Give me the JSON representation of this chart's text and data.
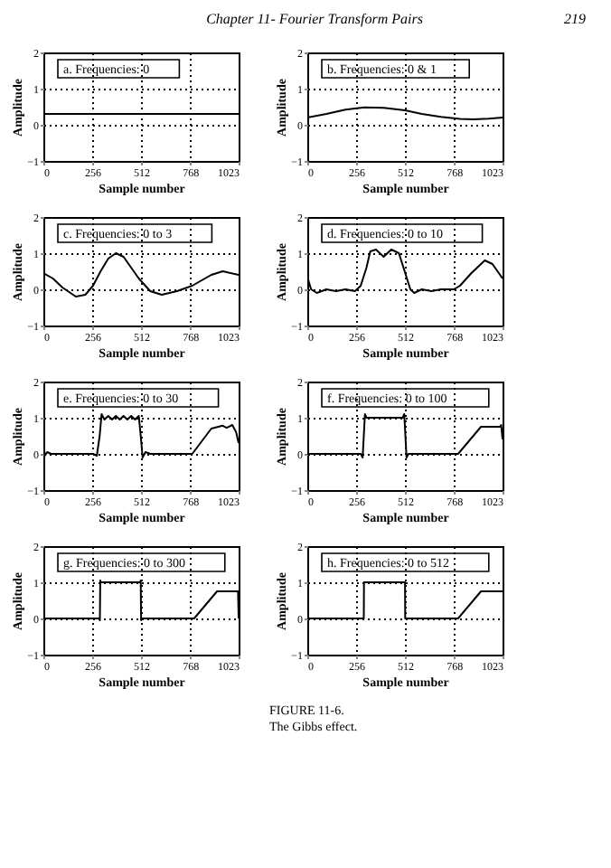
{
  "chart_data": [
    {
      "type": "line",
      "title": "a. Frequencies: 0",
      "xlabel": "Sample number",
      "ylabel": "Amplitude",
      "annotations": [
        "Chapter 11- Fourier Transform Pairs",
        "219"
      ],
      "xlim": [
        0,
        1023
      ],
      "xticks": [
        0,
        256,
        512,
        768,
        1023
      ],
      "ylim": [
        -1,
        2
      ],
      "yticks": [
        -1,
        0,
        1,
        2
      ],
      "grid": true,
      "series": [
        {
          "color": "#000000",
          "x": [
            0,
            1023
          ],
          "values": [
            0.3,
            0.3
          ]
        }
      ]
    },
    {
      "type": "line",
      "title": "b. Frequencies: 0 & 1",
      "xlabel": "Sample number",
      "ylabel": "Amplitude",
      "xlim": [
        0,
        1023
      ],
      "xticks": [
        0,
        256,
        512,
        768,
        1023
      ],
      "ylim": [
        -1,
        2
      ],
      "yticks": [
        -1,
        0,
        1,
        2
      ],
      "grid": true,
      "series": [
        {
          "color": "#000000",
          "x": [
            0,
            100,
            200,
            300,
            400,
            512,
            600,
            700,
            800,
            870,
            950,
            1023
          ],
          "values": [
            0.2,
            0.3,
            0.42,
            0.48,
            0.47,
            0.4,
            0.3,
            0.22,
            0.16,
            0.15,
            0.17,
            0.2
          ]
        }
      ]
    },
    {
      "type": "line",
      "title": "c. Frequencies: 0 to 3",
      "xlabel": "Sample number",
      "ylabel": "Amplitude",
      "xlim": [
        0,
        1023
      ],
      "xticks": [
        0,
        256,
        512,
        768,
        1023
      ],
      "ylim": [
        -1,
        2
      ],
      "yticks": [
        -1,
        0,
        1,
        2
      ],
      "grid": true,
      "series": [
        {
          "color": "#000000",
          "x": [
            0,
            50,
            100,
            170,
            220,
            260,
            300,
            340,
            380,
            420,
            460,
            500,
            560,
            620,
            700,
            780,
            880,
            940,
            1023
          ],
          "values": [
            0.45,
            0.3,
            0.05,
            -0.2,
            -0.15,
            0.1,
            0.5,
            0.85,
            1.0,
            0.9,
            0.6,
            0.3,
            -0.05,
            -0.15,
            -0.05,
            0.1,
            0.4,
            0.5,
            0.4
          ]
        }
      ]
    },
    {
      "type": "line",
      "title": "d. Frequencies: 0 to 10",
      "xlabel": "Sample number",
      "ylabel": "Amplitude",
      "xlim": [
        0,
        1023
      ],
      "xticks": [
        0,
        256,
        512,
        768,
        1023
      ],
      "ylim": [
        -1,
        2
      ],
      "yticks": [
        -1,
        0,
        1,
        2
      ],
      "grid": true,
      "series": [
        {
          "color": "#000000",
          "x": [
            0,
            20,
            50,
            100,
            150,
            200,
            250,
            280,
            310,
            330,
            360,
            400,
            440,
            480,
            510,
            540,
            560,
            600,
            650,
            700,
            768,
            800,
            860,
            930,
            970,
            1010,
            1023
          ],
          "values": [
            0.35,
            0.0,
            -0.1,
            0.0,
            -0.05,
            0.0,
            -0.05,
            0.1,
            0.6,
            1.05,
            1.1,
            0.9,
            1.1,
            1.0,
            0.5,
            0.0,
            -0.1,
            0.0,
            -0.05,
            0.0,
            0.0,
            0.1,
            0.45,
            0.8,
            0.7,
            0.4,
            0.3
          ]
        }
      ]
    },
    {
      "type": "line",
      "title": "e. Frequencies: 0 to 30",
      "xlabel": "Sample number",
      "ylabel": "Amplitude",
      "xlim": [
        0,
        1023
      ],
      "xticks": [
        0,
        256,
        512,
        768,
        1023
      ],
      "ylim": [
        -1,
        2
      ],
      "yticks": [
        -1,
        0,
        1,
        2
      ],
      "grid": true,
      "series": [
        {
          "color": "#000000",
          "x": [
            0,
            8,
            20,
            40,
            260,
            280,
            295,
            305,
            320,
            340,
            360,
            380,
            400,
            420,
            440,
            460,
            480,
            500,
            510,
            520,
            535,
            560,
            780,
            880,
            940,
            960,
            990,
            1010,
            1023
          ],
          "values": [
            0.3,
            -0.05,
            0.05,
            0.0,
            0.0,
            -0.05,
            0.5,
            1.1,
            0.95,
            1.05,
            0.95,
            1.05,
            0.95,
            1.05,
            0.95,
            1.05,
            0.95,
            1.05,
            0.5,
            -0.1,
            0.05,
            0.0,
            0.0,
            0.7,
            0.78,
            0.72,
            0.8,
            0.6,
            0.3
          ]
        }
      ]
    },
    {
      "type": "line",
      "title": "f. Frequencies: 0 to 100",
      "xlabel": "Sample number",
      "ylabel": "Amplitude",
      "xlim": [
        0,
        1023
      ],
      "xticks": [
        0,
        256,
        512,
        768,
        1023
      ],
      "ylim": [
        -1,
        2
      ],
      "yticks": [
        -1,
        0,
        1,
        2
      ],
      "grid": true,
      "series": [
        {
          "color": "#000000",
          "x": [
            0,
            280,
            290,
            296,
            302,
            310,
            500,
            508,
            514,
            520,
            530,
            790,
            910,
            1010,
            1016,
            1023
          ],
          "values": [
            0.0,
            0.0,
            -0.1,
            0.5,
            1.1,
            1.0,
            1.0,
            1.1,
            0.5,
            -0.1,
            0.0,
            0.0,
            0.75,
            0.75,
            0.8,
            0.4
          ]
        }
      ]
    },
    {
      "type": "line",
      "title": "g. Frequencies: 0 to 300",
      "xlabel": "Sample number",
      "ylabel": "Amplitude",
      "xlim": [
        0,
        1023
      ],
      "xticks": [
        0,
        256,
        512,
        768,
        1023
      ],
      "ylim": [
        -1,
        2
      ],
      "yticks": [
        -1,
        0,
        1,
        2
      ],
      "grid": true,
      "series": [
        {
          "color": "#000000",
          "x": [
            0,
            294,
            296,
            298,
            300,
            508,
            510,
            512,
            514,
            790,
            910,
            1020,
            1023
          ],
          "values": [
            0.0,
            0.0,
            -0.05,
            1.05,
            1.0,
            1.0,
            1.05,
            -0.05,
            0.0,
            0.0,
            0.75,
            0.75,
            0.0
          ]
        }
      ]
    },
    {
      "type": "line",
      "title": "h. Frequencies: 0 to 512",
      "xlabel": "Sample number",
      "ylabel": "Amplitude",
      "annotations": [
        "FIGURE 11-6.",
        "The Gibbs effect."
      ],
      "xlim": [
        0,
        1023
      ],
      "xticks": [
        0,
        256,
        512,
        768,
        1023
      ],
      "ylim": [
        -1,
        2
      ],
      "yticks": [
        -1,
        0,
        1,
        2
      ],
      "grid": true,
      "series": [
        {
          "color": "#000000",
          "x": [
            0,
            296,
            297,
            512,
            513,
            790,
            910,
            1023
          ],
          "values": [
            0.0,
            0.0,
            1.0,
            1.0,
            0.0,
            0.0,
            0.75,
            0.75
          ]
        }
      ]
    }
  ]
}
